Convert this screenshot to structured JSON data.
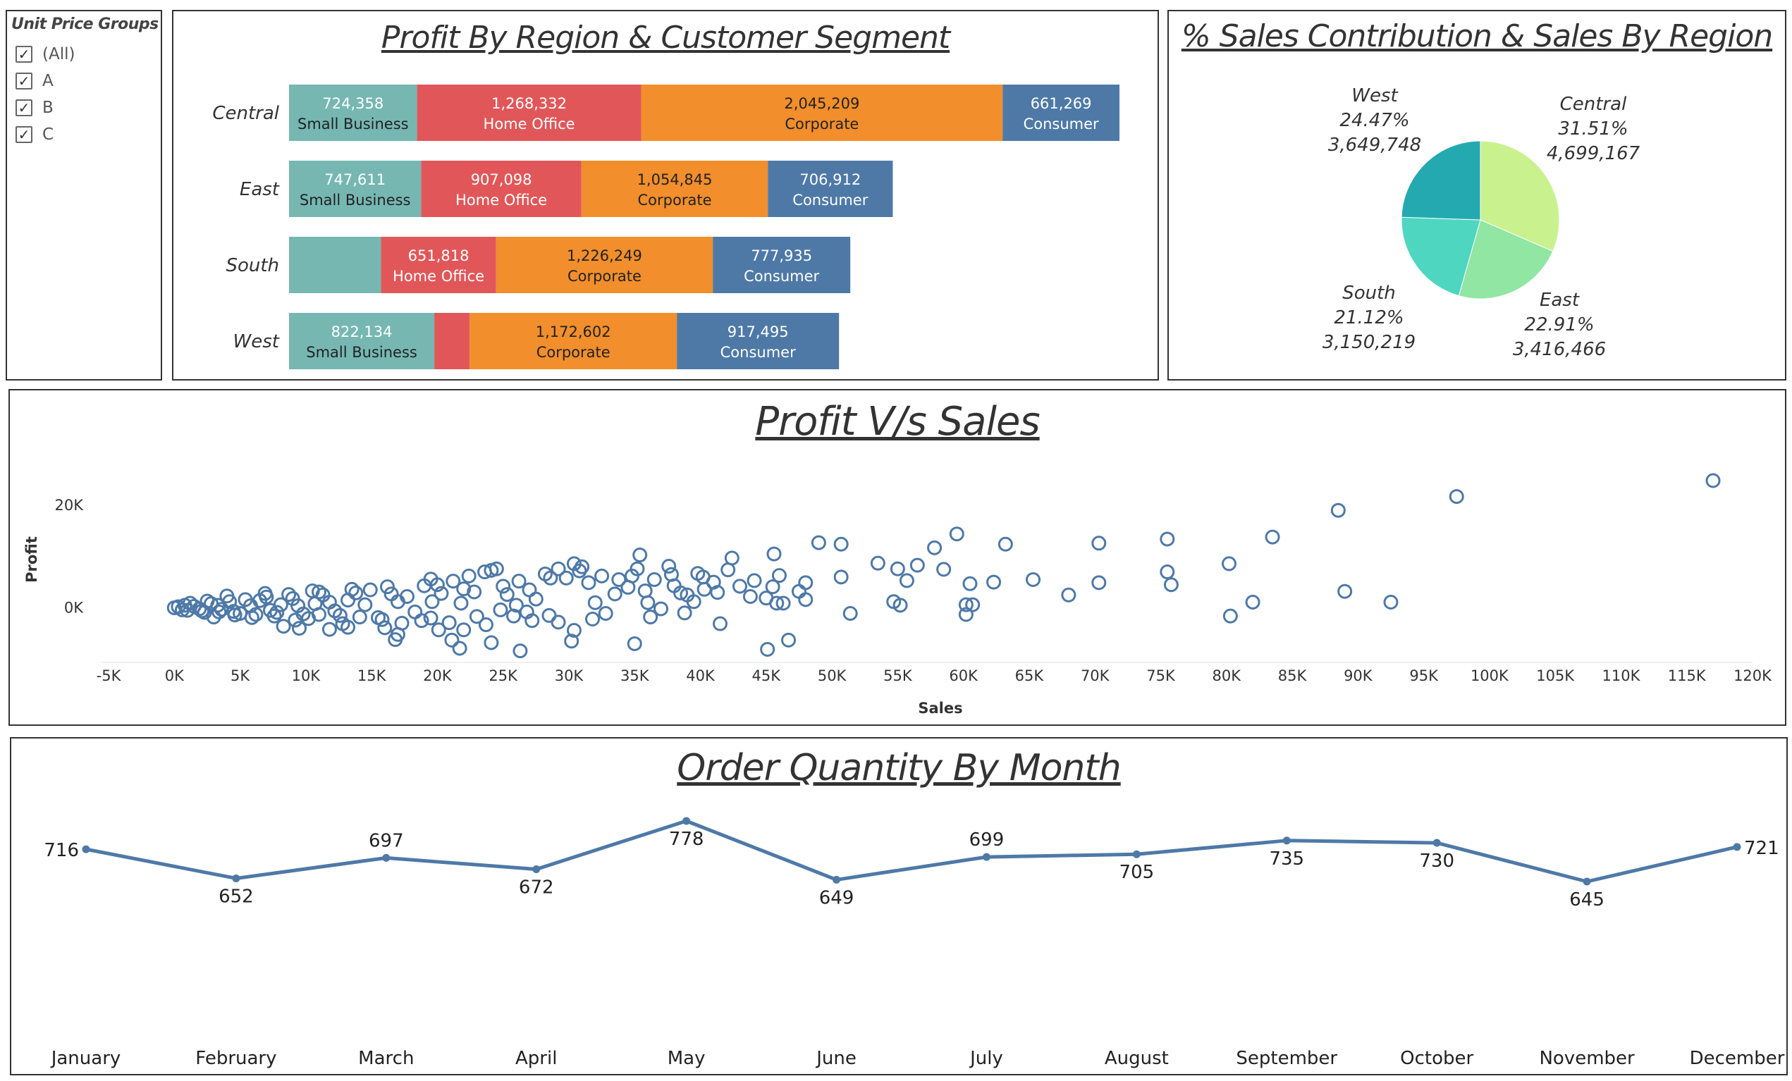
{
  "filter": {
    "title": "Unit Price Groups",
    "items": [
      {
        "label": "(All)",
        "checked": true
      },
      {
        "label": "A",
        "checked": true
      },
      {
        "label": "B",
        "checked": true
      },
      {
        "label": "C",
        "checked": true
      }
    ]
  },
  "colors": {
    "Small Business": "#76b7b2",
    "Home Office": "#e15759",
    "Corporate": "#f28e2b",
    "Consumer": "#4e79a7",
    "scatter": "#4e79a7",
    "line": "#4e79a7",
    "pie": {
      "Central": "#c9f28f",
      "East": "#90e6a2",
      "South": "#4ed6c0",
      "West": "#24a9b1"
    }
  },
  "chart_data": [
    {
      "type": "bar",
      "orientation": "horizontal",
      "stacked": true,
      "title": "Profit By Region & Customer Segment",
      "categories": [
        "Central",
        "East",
        "South",
        "West"
      ],
      "series": [
        {
          "name": "Small Business",
          "values": [
            724358,
            747611,
            520000,
            822134
          ],
          "labels": [
            "724,358",
            "747,611",
            "",
            "822,134"
          ]
        },
        {
          "name": "Home Office",
          "values": [
            1268332,
            907098,
            651818,
            200000
          ],
          "labels": [
            "1,268,332",
            "907,098",
            "651,818",
            ""
          ]
        },
        {
          "name": "Corporate",
          "values": [
            2045209,
            1054845,
            1226249,
            1172602
          ],
          "labels": [
            "2,045,209",
            "1,054,845",
            "1,226,249",
            "1,172,602"
          ]
        },
        {
          "name": "Consumer",
          "values": [
            661269,
            706912,
            777935,
            917495
          ],
          "labels": [
            "661,269",
            "706,912",
            "777,935",
            "917,495"
          ]
        }
      ]
    },
    {
      "type": "pie",
      "title": "% Sales Contribution & Sales By Region",
      "slices": [
        {
          "label": "Central",
          "percent": "31.51%",
          "value": 4699167,
          "value_label": "4,699,167"
        },
        {
          "label": "East",
          "percent": "22.91%",
          "value": 3416466,
          "value_label": "3,416,466"
        },
        {
          "label": "South",
          "percent": "21.12%",
          "value": 3150219,
          "value_label": "3,150,219"
        },
        {
          "label": "West",
          "percent": "24.47%",
          "value": 3649748,
          "value_label": "3,649,748"
        }
      ]
    },
    {
      "type": "scatter",
      "title": "Profit V/s Sales",
      "xlabel": "Sales",
      "ylabel": "Profit",
      "xlim": [
        -5000,
        120000
      ],
      "ylim": [
        -9000,
        27000
      ],
      "xticks": [
        "-5K",
        "0K",
        "5K",
        "10K",
        "15K",
        "20K",
        "25K",
        "30K",
        "35K",
        "40K",
        "45K",
        "50K",
        "55K",
        "60K",
        "65K",
        "70K",
        "75K",
        "80K",
        "85K",
        "90K",
        "95K",
        "100K",
        "105K",
        "110K",
        "115K",
        "120K"
      ],
      "yticks": [
        "0K",
        "20K"
      ],
      "points": [
        [
          117000,
          24800
        ],
        [
          97500,
          21700
        ],
        [
          88500,
          19000
        ],
        [
          83500,
          13800
        ],
        [
          75500,
          13400
        ],
        [
          70300,
          12600
        ],
        [
          63200,
          12400
        ],
        [
          59500,
          14400
        ],
        [
          49000,
          12700
        ],
        [
          50700,
          12400
        ],
        [
          45600,
          10500
        ],
        [
          42400,
          9700
        ],
        [
          35400,
          10300
        ],
        [
          30400,
          8600
        ],
        [
          57800,
          11700
        ],
        [
          56500,
          8300
        ],
        [
          58500,
          7500
        ],
        [
          53500,
          8700
        ],
        [
          55000,
          7600
        ],
        [
          55700,
          5300
        ],
        [
          60500,
          4700
        ],
        [
          62300,
          5000
        ],
        [
          65300,
          5500
        ],
        [
          68000,
          2500
        ],
        [
          70300,
          4900
        ],
        [
          75800,
          4500
        ],
        [
          75500,
          7000
        ],
        [
          80200,
          8600
        ],
        [
          82000,
          1100
        ],
        [
          80300,
          -1600
        ],
        [
          89000,
          3200
        ],
        [
          92500,
          1100
        ],
        [
          50700,
          6000
        ],
        [
          48000,
          4900
        ],
        [
          44100,
          5300
        ],
        [
          45500,
          4100
        ],
        [
          41300,
          3000
        ],
        [
          45000,
          1900
        ],
        [
          45800,
          900
        ],
        [
          46300,
          900
        ],
        [
          48000,
          1600
        ],
        [
          51400,
          -1100
        ],
        [
          54700,
          1200
        ],
        [
          55200,
          500
        ],
        [
          60200,
          600
        ],
        [
          60700,
          600
        ],
        [
          60200,
          -1300
        ],
        [
          45100,
          -8100
        ],
        [
          46700,
          -6300
        ],
        [
          41500,
          -3100
        ],
        [
          35000,
          -7000
        ],
        [
          30400,
          -4400
        ],
        [
          30200,
          -6500
        ],
        [
          26300,
          -8400
        ],
        [
          24100,
          -6800
        ],
        [
          21700,
          -7900
        ],
        [
          21100,
          -6300
        ],
        [
          20100,
          -4300
        ],
        [
          17000,
          -5200
        ],
        [
          16800,
          -6200
        ],
        [
          16000,
          -3900
        ],
        [
          13200,
          -3800
        ],
        [
          11800,
          -4200
        ],
        [
          9500,
          -4000
        ],
        [
          8300,
          -3600
        ],
        [
          3000,
          -1800
        ],
        [
          40200,
          6000
        ],
        [
          37800,
          6500
        ],
        [
          36500,
          5500
        ],
        [
          38000,
          4300
        ],
        [
          39000,
          2500
        ],
        [
          41000,
          5000
        ],
        [
          34500,
          4000
        ],
        [
          33500,
          2700
        ],
        [
          36000,
          1000
        ],
        [
          32000,
          1000
        ],
        [
          34800,
          6200
        ],
        [
          31000,
          8000
        ],
        [
          29200,
          7600
        ],
        [
          28600,
          5800
        ],
        [
          27000,
          3500
        ],
        [
          25300,
          2600
        ],
        [
          26800,
          -800
        ],
        [
          24800,
          -400
        ],
        [
          26000,
          500
        ],
        [
          22800,
          3100
        ],
        [
          22400,
          6200
        ],
        [
          23600,
          7000
        ],
        [
          24100,
          7300
        ],
        [
          21200,
          5200
        ],
        [
          20300,
          2800
        ],
        [
          19000,
          4300
        ],
        [
          19600,
          1200
        ],
        [
          18300,
          -800
        ],
        [
          17700,
          2200
        ],
        [
          16500,
          2700
        ],
        [
          14900,
          3500
        ],
        [
          14500,
          600
        ],
        [
          13200,
          1500
        ],
        [
          12200,
          -600
        ],
        [
          11300,
          2500
        ],
        [
          10700,
          800
        ],
        [
          9800,
          -1200
        ],
        [
          9000,
          1800
        ],
        [
          8100,
          600
        ],
        [
          7300,
          -500
        ],
        [
          6500,
          1400
        ],
        [
          5800,
          400
        ],
        [
          5000,
          -1100
        ],
        [
          4200,
          1200
        ],
        [
          3600,
          -300
        ],
        [
          2800,
          800
        ],
        [
          2100,
          -600
        ],
        [
          1500,
          300
        ],
        [
          800,
          500
        ],
        [
          300,
          200
        ],
        [
          0,
          0
        ],
        [
          600,
          -400
        ],
        [
          1200,
          900
        ],
        [
          1900,
          -200
        ],
        [
          2500,
          1300
        ],
        [
          3300,
          500
        ],
        [
          4500,
          -700
        ],
        [
          5400,
          1600
        ],
        [
          6200,
          -1300
        ],
        [
          7000,
          2100
        ],
        [
          7800,
          -900
        ],
        [
          8700,
          2600
        ],
        [
          9400,
          400
        ],
        [
          10200,
          -2100
        ],
        [
          11000,
          3100
        ],
        [
          11800,
          1100
        ],
        [
          12600,
          -1500
        ],
        [
          13800,
          2900
        ],
        [
          15500,
          -1900
        ],
        [
          17000,
          1200
        ],
        [
          18800,
          -2500
        ],
        [
          20000,
          4500
        ],
        [
          21800,
          900
        ],
        [
          23000,
          -1700
        ],
        [
          25000,
          4200
        ],
        [
          27500,
          1700
        ],
        [
          28500,
          -1500
        ],
        [
          29800,
          5800
        ],
        [
          31500,
          4900
        ],
        [
          32800,
          -1100
        ],
        [
          33800,
          5500
        ],
        [
          35800,
          3300
        ],
        [
          37000,
          -200
        ],
        [
          38500,
          2900
        ],
        [
          39500,
          1200
        ],
        [
          40300,
          3600
        ],
        [
          43000,
          4200
        ],
        [
          43800,
          2200
        ],
        [
          46000,
          6300
        ],
        [
          47500,
          3200
        ],
        [
          4000,
          2300
        ],
        [
          6900,
          2800
        ],
        [
          10500,
          3300
        ],
        [
          13500,
          3600
        ],
        [
          16200,
          4100
        ],
        [
          19500,
          5600
        ],
        [
          22000,
          3700
        ],
        [
          24500,
          7600
        ],
        [
          26200,
          5200
        ],
        [
          28200,
          6600
        ],
        [
          30800,
          7200
        ],
        [
          32500,
          6200
        ],
        [
          35200,
          7600
        ],
        [
          37600,
          8100
        ],
        [
          39800,
          6700
        ],
        [
          42100,
          7400
        ],
        [
          36200,
          -1800
        ],
        [
          38800,
          -1000
        ],
        [
          31800,
          -2200
        ],
        [
          29200,
          -2800
        ],
        [
          27200,
          -2500
        ],
        [
          25800,
          -1600
        ],
        [
          23700,
          -3300
        ],
        [
          22000,
          -4300
        ],
        [
          20900,
          -2900
        ],
        [
          19500,
          -2000
        ],
        [
          17300,
          -3000
        ],
        [
          15800,
          -2300
        ],
        [
          14100,
          -1800
        ],
        [
          12800,
          -3100
        ],
        [
          11000,
          -1300
        ],
        [
          9200,
          -2400
        ],
        [
          7600,
          -1600
        ],
        [
          5900,
          -1900
        ],
        [
          4600,
          -1400
        ],
        [
          3400,
          -800
        ],
        [
          2300,
          -900
        ],
        [
          1000,
          -500
        ]
      ]
    },
    {
      "type": "line",
      "title": "Order Quantity By Month",
      "categories": [
        "January",
        "February",
        "March",
        "April",
        "May",
        "June",
        "July",
        "August",
        "September",
        "October",
        "November",
        "December"
      ],
      "values": [
        716,
        652,
        697,
        672,
        778,
        649,
        699,
        705,
        735,
        730,
        645,
        721
      ]
    }
  ]
}
